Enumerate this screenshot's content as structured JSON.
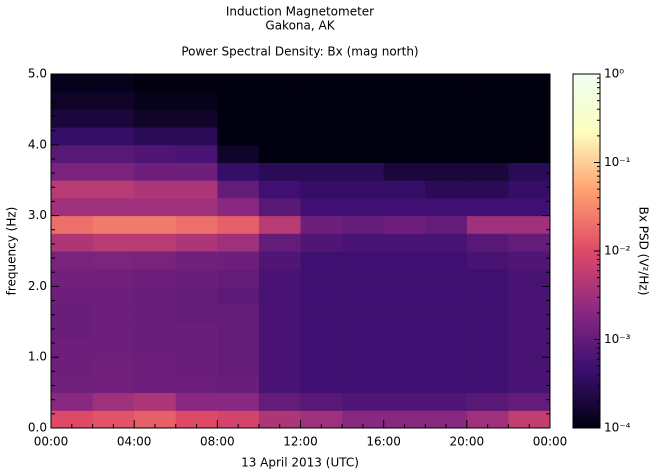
{
  "chart_data": {
    "type": "spectrogram",
    "title": "Induction Magnetometer",
    "subtitle": "Gakona, AK",
    "plot_title": "Power Spectral Density: Bx (mag north)",
    "xlabel": "13 April 2013 (UTC)",
    "ylabel": "frequency (Hz)",
    "colorbar_label": "Bx PSD (V²/Hz)",
    "xlim": [
      0,
      24
    ],
    "xticks": [
      {
        "value": 0,
        "label": "00:00"
      },
      {
        "value": 4,
        "label": "04:00"
      },
      {
        "value": 8,
        "label": "08:00"
      },
      {
        "value": 12,
        "label": "12:00"
      },
      {
        "value": 16,
        "label": "16:00"
      },
      {
        "value": 20,
        "label": "20:00"
      },
      {
        "value": 24,
        "label": "00:00"
      }
    ],
    "xminor_ticks": [
      1,
      2,
      3,
      5,
      6,
      7,
      9,
      10,
      11,
      13,
      14,
      15,
      17,
      18,
      19,
      21,
      22,
      23
    ],
    "ylim": [
      0,
      5
    ],
    "yticks": [
      {
        "value": 0,
        "label": "0.0"
      },
      {
        "value": 1,
        "label": "1.0"
      },
      {
        "value": 2,
        "label": "2.0"
      },
      {
        "value": 3,
        "label": "3.0"
      },
      {
        "value": 4,
        "label": "4.0"
      },
      {
        "value": 5,
        "label": "5.0"
      }
    ],
    "yminor_ticks": [
      0.2,
      0.4,
      0.6,
      0.8,
      1.2,
      1.4,
      1.6,
      1.8,
      2.2,
      2.4,
      2.6,
      2.8,
      3.2,
      3.4,
      3.6,
      3.8,
      4.2,
      4.4,
      4.6,
      4.8
    ],
    "clim": [
      0.0001,
      1
    ],
    "clog": true,
    "cticks": [
      {
        "value": 0.0001,
        "label": "10⁻⁴"
      },
      {
        "value": 0.001,
        "label": "10⁻³"
      },
      {
        "value": 0.01,
        "label": "10⁻²"
      },
      {
        "value": 0.1,
        "label": "10⁻¹"
      },
      {
        "value": 1,
        "label": "10⁰"
      }
    ],
    "colormap": [
      "#000010",
      "#3b0f70",
      "#8c2981",
      "#de4968",
      "#fe9f6d",
      "#fcfdbf",
      "#f0fff0"
    ],
    "xbins": [
      0,
      2,
      4,
      6,
      8,
      10,
      12,
      14,
      16,
      18,
      20,
      22,
      24
    ],
    "ybins": [
      0,
      0.25,
      0.5,
      0.75,
      1,
      1.25,
      1.5,
      1.75,
      2,
      2.25,
      2.5,
      2.75,
      3,
      3.25,
      3.5,
      3.75,
      4,
      4.25,
      4.5,
      4.75,
      5
    ],
    "z": [
      [
        0.01,
        0.012,
        0.015,
        0.01,
        0.008,
        0.004,
        0.003,
        0.002,
        0.002,
        0.002,
        0.003,
        0.006
      ],
      [
        0.002,
        0.003,
        0.004,
        0.002,
        0.002,
        0.001,
        0.0008,
        0.0007,
        0.0007,
        0.0007,
        0.0008,
        0.001
      ],
      [
        0.0013,
        0.0013,
        0.0012,
        0.0012,
        0.0011,
        0.0006,
        0.0005,
        0.0005,
        0.0005,
        0.0005,
        0.0005,
        0.0006
      ],
      [
        0.0012,
        0.0013,
        0.0012,
        0.0011,
        0.001,
        0.0006,
        0.0005,
        0.0005,
        0.0005,
        0.0005,
        0.0005,
        0.0006
      ],
      [
        0.0012,
        0.0012,
        0.0011,
        0.0011,
        0.001,
        0.0006,
        0.0005,
        0.0005,
        0.0005,
        0.0005,
        0.0005,
        0.0006
      ],
      [
        0.0011,
        0.0012,
        0.0011,
        0.0011,
        0.001,
        0.0006,
        0.0005,
        0.0005,
        0.0005,
        0.0005,
        0.0005,
        0.0006
      ],
      [
        0.0011,
        0.0012,
        0.0011,
        0.001,
        0.001,
        0.0006,
        0.0005,
        0.0005,
        0.0005,
        0.0005,
        0.0005,
        0.0006
      ],
      [
        0.0012,
        0.0012,
        0.0011,
        0.001,
        0.0009,
        0.0006,
        0.0005,
        0.0005,
        0.0005,
        0.0005,
        0.0005,
        0.0006
      ],
      [
        0.0013,
        0.0013,
        0.0012,
        0.0011,
        0.001,
        0.0006,
        0.0005,
        0.0005,
        0.0005,
        0.0005,
        0.0005,
        0.0006
      ],
      [
        0.0015,
        0.0016,
        0.0015,
        0.0013,
        0.0012,
        0.0007,
        0.0005,
        0.0005,
        0.0005,
        0.0005,
        0.0006,
        0.0007
      ],
      [
        0.004,
        0.005,
        0.005,
        0.004,
        0.003,
        0.001,
        0.0007,
        0.0006,
        0.0006,
        0.0006,
        0.0008,
        0.001
      ],
      [
        0.02,
        0.025,
        0.025,
        0.02,
        0.015,
        0.005,
        0.0012,
        0.001,
        0.0012,
        0.001,
        0.003,
        0.003
      ],
      [
        0.003,
        0.003,
        0.003,
        0.003,
        0.002,
        0.0008,
        0.0005,
        0.0005,
        0.0005,
        0.0005,
        0.0005,
        0.0005
      ],
      [
        0.005,
        0.005,
        0.004,
        0.004,
        0.001,
        0.0005,
        0.0004,
        0.0004,
        0.0004,
        0.0003,
        0.0003,
        0.0004
      ],
      [
        0.0015,
        0.0015,
        0.0012,
        0.0012,
        0.0004,
        0.0003,
        0.0003,
        0.0003,
        0.0002,
        0.0002,
        0.0002,
        0.0003
      ],
      [
        0.0008,
        0.0008,
        0.0007,
        0.0006,
        0.00015,
        0.0001,
        0.0001,
        0.0001,
        0.0001,
        0.0001,
        0.0001,
        0.0001
      ],
      [
        0.0004,
        0.0004,
        0.0003,
        0.0003,
        0.0001,
        0.0001,
        0.0001,
        0.0001,
        0.0001,
        0.0001,
        0.0001,
        0.0001
      ],
      [
        0.0002,
        0.0002,
        0.00015,
        0.00015,
        0.0001,
        0.0001,
        0.0001,
        0.0001,
        0.0001,
        0.0001,
        0.0001,
        0.0001
      ],
      [
        0.00015,
        0.00015,
        0.00012,
        0.00012,
        0.0001,
        0.0001,
        0.0001,
        0.0001,
        0.0001,
        0.0001,
        0.0001,
        0.0001
      ],
      [
        0.00012,
        0.00012,
        0.0001,
        0.0001,
        0.0001,
        0.0001,
        0.0001,
        0.0001,
        0.0001,
        0.0001,
        0.0001,
        0.0001
      ]
    ]
  }
}
